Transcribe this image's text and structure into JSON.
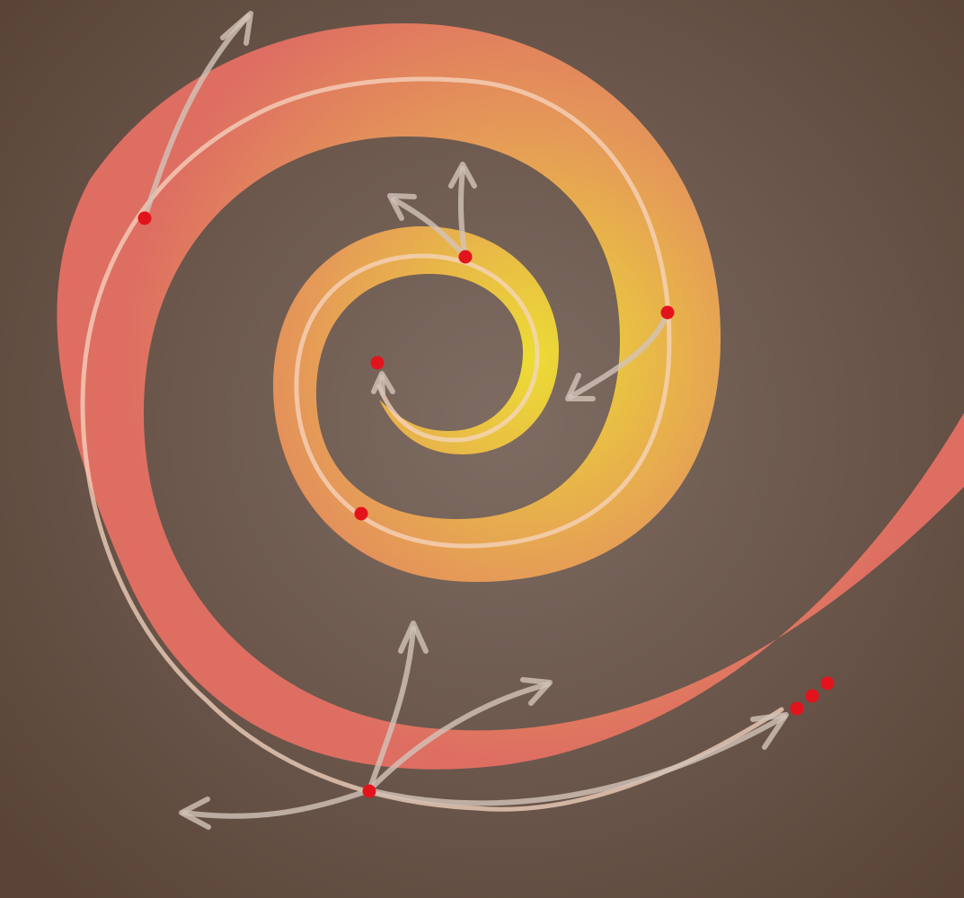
{
  "diagram": {
    "background_center": "#7e6c62",
    "background_edge": "#5a4438",
    "band_color_outer": "#de6e62",
    "band_color_mid": "#e59a58",
    "band_color_inner": "#ecdc34",
    "path_line_color": "#f6d6c0",
    "arrow_color": "#d2c3b9",
    "node_color": "#e3131c",
    "node_count": 6,
    "continuation_dots": 3,
    "arrow_count": 10,
    "icons": [
      "spiral-band",
      "spiral-path",
      "branch-arrow",
      "node-dot",
      "ellipsis-dots"
    ]
  }
}
